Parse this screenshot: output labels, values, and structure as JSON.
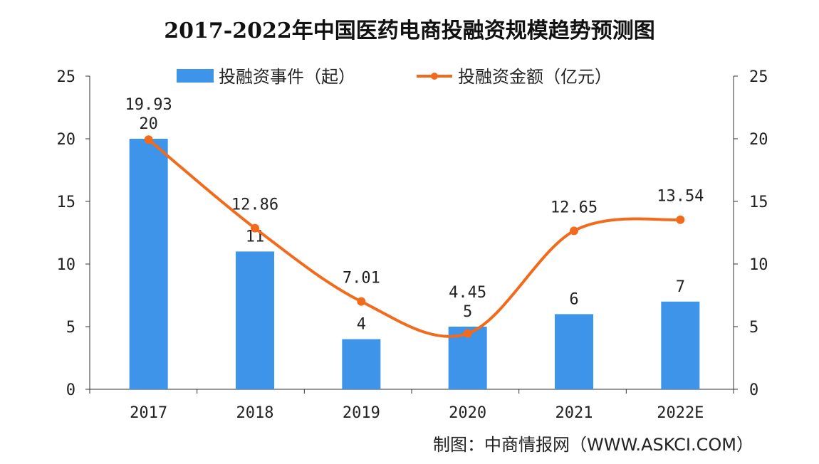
{
  "chart_data": {
    "type": "bar+line",
    "title": "2017-2022年中国医药电商投融资规模趋势预测图",
    "categories": [
      "2017",
      "2018",
      "2019",
      "2020",
      "2021",
      "2022E"
    ],
    "series": [
      {
        "name": "投融资事件（起）",
        "type": "bar",
        "axis": "left",
        "values": [
          20,
          11,
          4,
          5,
          6,
          7
        ],
        "color": "#3d94e8"
      },
      {
        "name": "投融资金额（亿元）",
        "type": "line",
        "axis": "right",
        "values": [
          19.93,
          12.86,
          7.01,
          4.45,
          12.65,
          13.54
        ],
        "color": "#f26a1b"
      }
    ],
    "ylim": [
      0,
      25
    ],
    "y2lim": [
      0,
      25
    ],
    "yticks": [
      0,
      5,
      10,
      15,
      20,
      25
    ],
    "grid": false,
    "legend": "top-center",
    "source": "制图：中商情报网（WWW.ASKCI.COM）"
  }
}
